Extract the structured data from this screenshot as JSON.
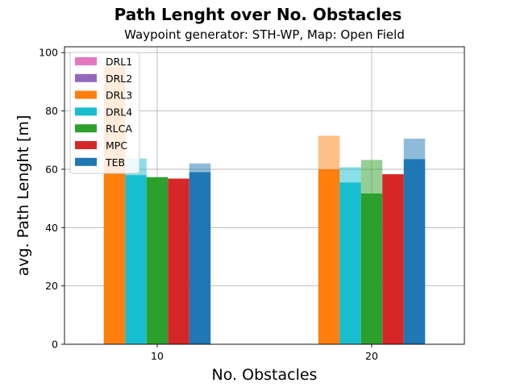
{
  "chart_data": {
    "type": "bar",
    "title": "Path Lenght over No. Obstacles",
    "subtitle": "Waypoint generator: STH-WP, Map: Open Field",
    "xlabel": "No. Obstacles",
    "ylabel": "avg. Path Lenght [m]",
    "categories": [
      "10",
      "20"
    ],
    "ylim": [
      0,
      102
    ],
    "yticks": [
      0,
      20,
      40,
      60,
      80,
      100
    ],
    "grid": true,
    "legend_position": "upper-left",
    "legend_order": [
      "DRL1",
      "DRL2",
      "DRL3",
      "DRL4",
      "RLCA",
      "MPC",
      "TEB"
    ],
    "series": [
      {
        "name": "DRL1",
        "color": "#e377c2",
        "values": [
          null,
          null
        ],
        "upper": [
          null,
          null
        ]
      },
      {
        "name": "DRL2",
        "color": "#9467bd",
        "values": [
          null,
          null
        ],
        "upper": [
          null,
          null
        ]
      },
      {
        "name": "DRL3",
        "color": "#ff7f0e",
        "values": [
          95.0,
          60.0
        ],
        "upper": [
          96.5,
          71.5
        ]
      },
      {
        "name": "DRL4",
        "color": "#17becf",
        "values": [
          58.0,
          55.5
        ],
        "upper": [
          63.7,
          60.7
        ]
      },
      {
        "name": "RLCA",
        "color": "#2ca02c",
        "values": [
          57.3,
          51.7
        ],
        "upper": [
          57.3,
          63.2
        ]
      },
      {
        "name": "MPC",
        "color": "#d62728",
        "values": [
          56.8,
          58.3
        ],
        "upper": [
          56.8,
          58.3
        ]
      },
      {
        "name": "TEB",
        "color": "#1f77b4",
        "values": [
          59.0,
          63.5
        ],
        "upper": [
          62.0,
          70.5
        ]
      }
    ]
  }
}
